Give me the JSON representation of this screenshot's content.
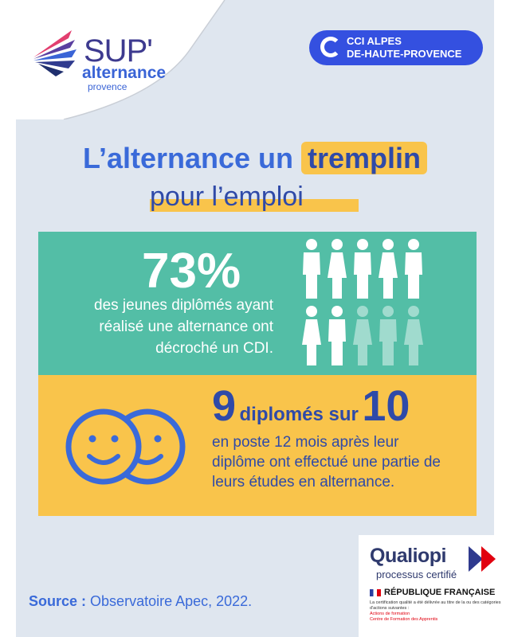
{
  "logo": {
    "sup": "SUP'",
    "alternance": "alternance",
    "provence": "provence"
  },
  "badge": {
    "line1": "CCI ALPES",
    "line2": "DE-HAUTE-PROVENCE"
  },
  "headline": {
    "part1": "L’alternance un ",
    "highlight": "tremplin",
    "line2": "pour l’emploi"
  },
  "stat1": {
    "value": "73%",
    "text_lines": [
      "des jeunes diplômés ayant",
      "réalisé une alternance ont",
      "décroché un CDI."
    ],
    "people_total": 10,
    "people_highlighted": 7
  },
  "stat2": {
    "num1": "9",
    "words": "diplomés sur",
    "num2": "10",
    "text_lines": [
      "en poste 12 mois après leur",
      "diplôme ont effectué une partie de",
      "leurs études en alternance."
    ]
  },
  "source": {
    "label": "Source :",
    "text": "Observatoire Apec, 2022."
  },
  "qualiopi": {
    "title": "Qualiopi",
    "subtitle": "processus certifié",
    "republique": "RÉPUBLIQUE FRANÇAISE",
    "note": "La certification qualité a été délivrée au titre de la ou des catégories d'actions suivantes :",
    "actions": [
      "Actions de formation",
      "Centre de Formation des Apprentis"
    ]
  },
  "colors": {
    "blue": "#3a6ad9",
    "navy": "#2f4aa8",
    "green": "#53bea6",
    "yellow": "#f9c44b",
    "panel": "#dfe6ef"
  }
}
